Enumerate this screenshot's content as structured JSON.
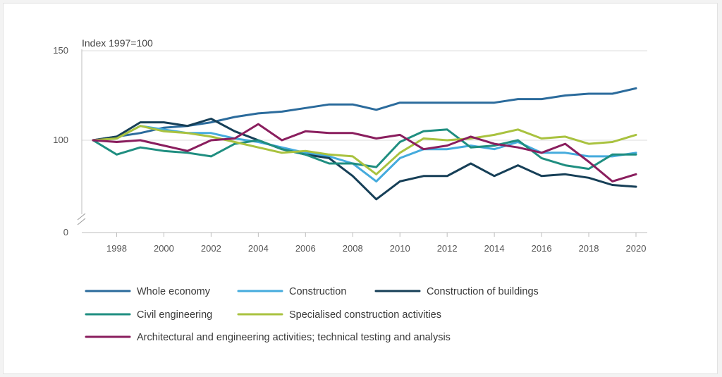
{
  "chart_data": {
    "type": "line",
    "unit_label": "Index 1997=100",
    "x": [
      1997,
      1998,
      1999,
      2000,
      2001,
      2002,
      2003,
      2004,
      2005,
      2006,
      2007,
      2008,
      2009,
      2010,
      2011,
      2012,
      2013,
      2014,
      2015,
      2016,
      2017,
      2018,
      2019,
      2020
    ],
    "x_ticks": [
      1998,
      2000,
      2002,
      2004,
      2006,
      2008,
      2010,
      2012,
      2014,
      2016,
      2018,
      2020
    ],
    "y_ticks": [
      0,
      100,
      150
    ],
    "y_axis_break": true,
    "ylim_display": [
      50,
      150
    ],
    "grid": "horizontal",
    "legend_placement": "bottom",
    "series": [
      {
        "name": "Whole economy",
        "color": "#2b6b9c",
        "values": [
          100,
          102,
          104,
          107,
          108,
          110,
          113,
          115,
          116,
          118,
          120,
          120,
          117,
          121,
          121,
          121,
          121,
          121,
          123,
          123,
          125,
          126,
          126,
          129
        ]
      },
      {
        "name": "Construction",
        "color": "#45abdd",
        "values": [
          100,
          101,
          108,
          106,
          104,
          104,
          101,
          99,
          96,
          93,
          91,
          87,
          77,
          90,
          95,
          95,
          97,
          95,
          99,
          93,
          93,
          91,
          91,
          93
        ]
      },
      {
        "name": "Construction of buildings",
        "color": "#163f57",
        "values": [
          100,
          102,
          110,
          110,
          108,
          112,
          105,
          100,
          95,
          92,
          90,
          80,
          67,
          77,
          80,
          80,
          87,
          80,
          86,
          80,
          81,
          79,
          75,
          74
        ]
      },
      {
        "name": "Civil engineering",
        "color": "#1f8e80",
        "values": [
          100,
          92,
          96,
          94,
          93,
          91,
          98,
          100,
          95,
          92,
          87,
          87,
          85,
          99,
          105,
          106,
          96,
          97,
          100,
          90,
          86,
          84,
          92,
          92
        ]
      },
      {
        "name": "Specialised construction activities",
        "color": "#a9c23f",
        "values": [
          100,
          101,
          108,
          105,
          104,
          102,
          99,
          96,
          93,
          94,
          92,
          91,
          81,
          93,
          101,
          100,
          101,
          103,
          106,
          101,
          102,
          98,
          99,
          103
        ]
      },
      {
        "name": "Architectural and engineering activities; technical testing and analysis",
        "color": "#8a1e5e",
        "values": [
          100,
          99,
          100,
          97,
          94,
          100,
          101,
          109,
          100,
          105,
          104,
          104,
          101,
          103,
          95,
          97,
          102,
          98,
          96,
          93,
          98,
          88,
          77,
          81
        ]
      }
    ]
  }
}
